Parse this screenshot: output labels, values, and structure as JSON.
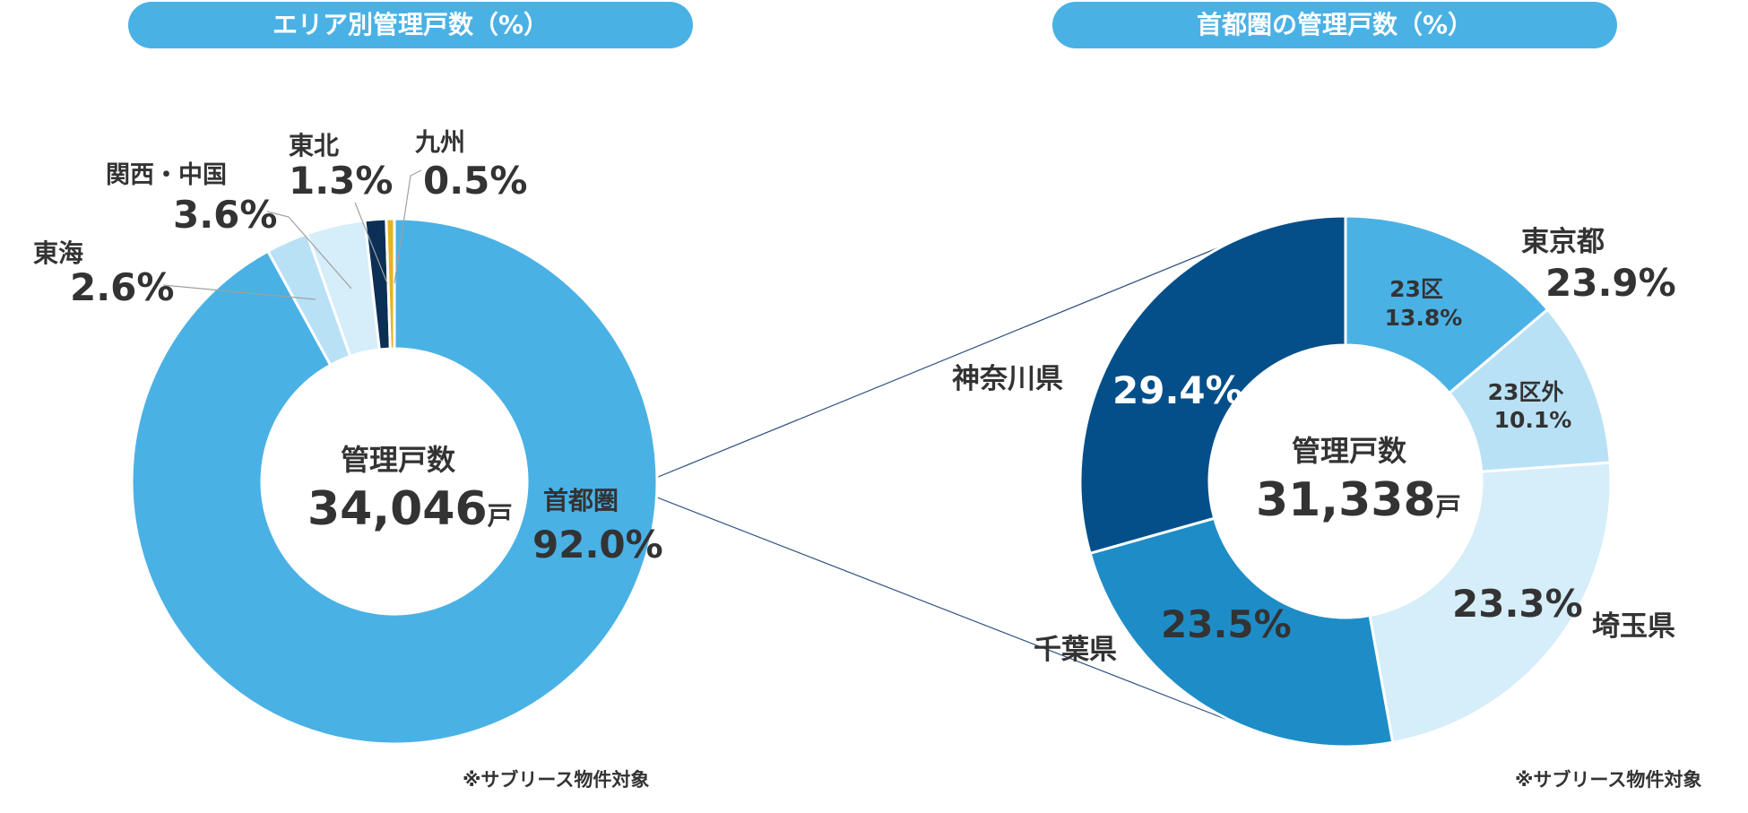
{
  "chart_data": [
    {
      "type": "pie",
      "title": "エリア別管理戸数（%）",
      "center_label": "管理戸数",
      "center_value": "34,046",
      "center_unit": "戸",
      "slices": [
        {
          "label": "首都圏",
          "value": 92.0,
          "display": "92.0%",
          "color": "#4ab1e5"
        },
        {
          "label": "東海",
          "value": 2.6,
          "display": "2.6%",
          "color": "#b9e1f6"
        },
        {
          "label": "関西・中国",
          "value": 3.6,
          "display": "3.6%",
          "color": "#d6edfa"
        },
        {
          "label": "東北",
          "value": 1.3,
          "display": "1.3%",
          "color": "#0b2f55"
        },
        {
          "label": "九州",
          "value": 0.5,
          "display": "0.5%",
          "color": "#e6b422"
        }
      ],
      "note": "※サブリース物件対象"
    },
    {
      "type": "pie",
      "title": "首都圏の管理戸数（%）",
      "center_label": "管理戸数",
      "center_value": "31,338",
      "center_unit": "戸",
      "slices": [
        {
          "label": "23区",
          "value": 13.8,
          "display": "13.8%",
          "color": "#4ab1e5"
        },
        {
          "label": "23区外",
          "value": 10.1,
          "display": "10.1%",
          "color": "#b9e1f6"
        },
        {
          "label": "埼玉県",
          "value": 23.3,
          "display": "23.3%",
          "color": "#d6edfa"
        },
        {
          "label": "千葉県",
          "value": 23.5,
          "display": "23.5%",
          "color": "#1e8dc7"
        },
        {
          "label": "神奈川県",
          "value": 29.4,
          "display": "29.4%",
          "color": "#044f8a"
        }
      ],
      "group_label": "東京都",
      "group_display": "23.9%",
      "note": "※サブリース物件対象"
    }
  ]
}
